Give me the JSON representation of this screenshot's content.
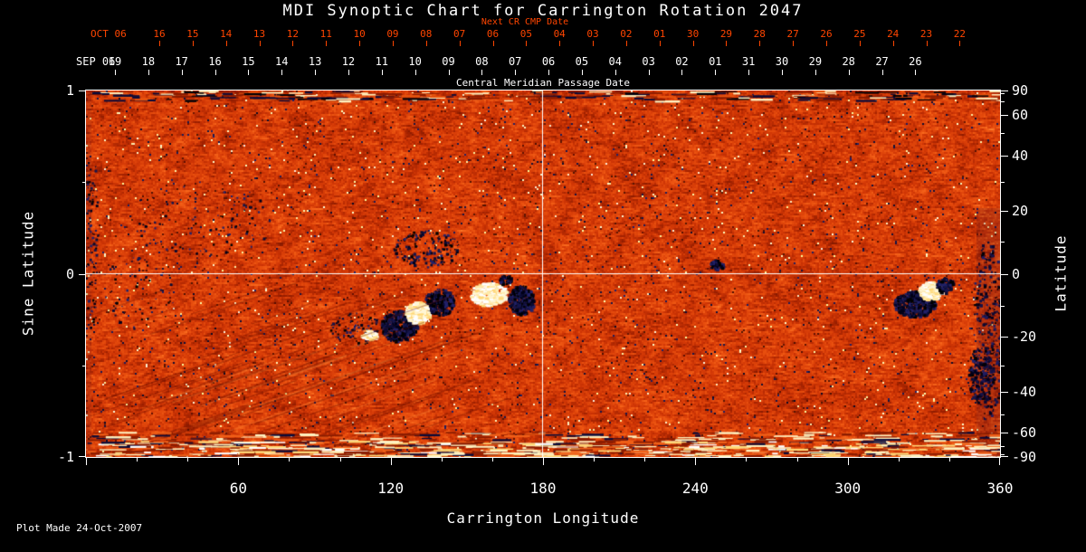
{
  "title": "MDI Synoptic Chart for Carrington Rotation 2047",
  "credit": "Plot Made 24-Oct-2007",
  "colors": {
    "background": "#000000",
    "foreground": "#ffffff",
    "date_red": "#ff4500"
  },
  "top_axis": {
    "next_cr_label": "Next CR CMP Date",
    "next_cr_month": "OCT 06",
    "next_cr_days": [
      "16",
      "15",
      "14",
      "13",
      "12",
      "11",
      "10",
      "09",
      "08",
      "07",
      "06",
      "05",
      "04",
      "03",
      "02",
      "01",
      "30",
      "29",
      "28",
      "27",
      "26",
      "25",
      "24",
      "23",
      "22"
    ],
    "cmp_month": "SEP 06",
    "cmp_days": [
      "19",
      "18",
      "17",
      "16",
      "15",
      "14",
      "13",
      "12",
      "11",
      "10",
      "09",
      "08",
      "07",
      "06",
      "05",
      "04",
      "03",
      "02",
      "01",
      "31",
      "30",
      "29",
      "28",
      "27",
      "26"
    ],
    "cmp_label": "Central Meridian Passage Date"
  },
  "chart_data": {
    "type": "heatmap",
    "title": "MDI Synoptic Chart for Carrington Rotation 2047",
    "xlabel": "Carrington Longitude",
    "ylabel_left": "Sine Latitude",
    "ylabel_right": "Latitude",
    "xlim": [
      0,
      360
    ],
    "ylim_sine_latitude": [
      -1,
      1
    ],
    "x_ticks": [
      60,
      120,
      180,
      240,
      300,
      360
    ],
    "y_left_ticks": [
      1,
      0,
      -1
    ],
    "y_right_ticks": [
      90,
      60,
      40,
      20,
      0,
      -20,
      -40,
      -60,
      -90
    ],
    "grid_lines": {
      "horizontal_at_sine_latitude": 0,
      "vertical_at_longitude": 180
    },
    "colormap": {
      "base_stops": [
        [
          0.0,
          "#6e1400"
        ],
        [
          0.2,
          "#9e2000"
        ],
        [
          0.45,
          "#cf3505"
        ],
        [
          0.7,
          "#e84e0e"
        ],
        [
          0.88,
          "#f96a1e"
        ],
        [
          1.0,
          "#ffa448"
        ]
      ],
      "negative_polarity": [
        "#000018",
        "#0b0b32",
        "#16164c",
        "#000000",
        "#22226a"
      ],
      "positive_polarity": [
        "#ffffff",
        "#fff7d6",
        "#ffeaa8",
        "#ffd878"
      ],
      "grid_line": "#ffffff"
    },
    "features": [
      {
        "name": "ar-a-west-dark",
        "lon": 123,
        "sine_lat": -0.28,
        "rlon": 7,
        "rslat": 0.085,
        "kind": "dark",
        "density": 460
      },
      {
        "name": "ar-a-east-dark",
        "lon": 139,
        "sine_lat": -0.15,
        "rlon": 6,
        "rslat": 0.07,
        "kind": "dark",
        "density": 300
      },
      {
        "name": "ar-a-bright-core",
        "lon": 130,
        "sine_lat": -0.21,
        "rlon": 4.5,
        "rslat": 0.06,
        "kind": "bright",
        "density": 240,
        "solid": true
      },
      {
        "name": "ar-a-trailing-speckles",
        "lon": 106,
        "sine_lat": -0.3,
        "rlon": 10,
        "rslat": 0.09,
        "kind": "dark",
        "density": 90,
        "dot": 2
      },
      {
        "name": "ar-a-trailing-bright",
        "lon": 111,
        "sine_lat": -0.33,
        "rlon": 3,
        "rslat": 0.025,
        "kind": "bright",
        "density": 60
      },
      {
        "name": "north-speckle-field",
        "lon": 134,
        "sine_lat": 0.14,
        "rlon": 13,
        "rslat": 0.1,
        "kind": "dark",
        "density": 160,
        "dot": 2.5
      },
      {
        "name": "ar-b-bright-plage",
        "lon": 158,
        "sine_lat": -0.11,
        "rlon": 7,
        "rslat": 0.065,
        "kind": "bright",
        "density": 380
      },
      {
        "name": "ar-b-dark-spot",
        "lon": 171,
        "sine_lat": -0.14,
        "rlon": 5,
        "rslat": 0.08,
        "kind": "dark",
        "density": 380
      },
      {
        "name": "ar-b-small-dark",
        "lon": 165,
        "sine_lat": -0.03,
        "rlon": 2.5,
        "rslat": 0.025,
        "kind": "dark",
        "density": 55
      },
      {
        "name": "center-small-dark",
        "lon": 248,
        "sine_lat": 0.05,
        "rlon": 2.5,
        "rslat": 0.03,
        "kind": "dark",
        "density": 70
      },
      {
        "name": "ar-c-dark",
        "lon": 326,
        "sine_lat": -0.16,
        "rlon": 8,
        "rslat": 0.07,
        "kind": "dark",
        "density": 500
      },
      {
        "name": "ar-c-bright-core",
        "lon": 332,
        "sine_lat": -0.09,
        "rlon": 4.5,
        "rslat": 0.05,
        "kind": "bright",
        "density": 230,
        "solid": true
      },
      {
        "name": "ar-c-dark-east",
        "lon": 338,
        "sine_lat": -0.06,
        "rlon": 3.5,
        "rslat": 0.04,
        "kind": "dark",
        "density": 120
      },
      {
        "name": "east-limb-diffuse-dark",
        "lon": 355,
        "sine_lat": -0.3,
        "rlon": 6,
        "rslat": 0.5,
        "kind": "dark",
        "density": 300,
        "dot": 2.5
      },
      {
        "name": "east-limb-dark-clump",
        "lon": 352,
        "sine_lat": -0.55,
        "rlon": 5,
        "rslat": 0.15,
        "kind": "dark",
        "density": 150
      },
      {
        "name": "west-quadrant-speckles",
        "lon": 45,
        "sine_lat": 0.3,
        "rlon": 28,
        "rslat": 0.22,
        "kind": "dark",
        "density": 110,
        "dot": 2
      },
      {
        "name": "west-mid-speckles",
        "lon": 20,
        "sine_lat": -0.1,
        "rlon": 15,
        "rslat": 0.2,
        "kind": "dark",
        "density": 60,
        "dot": 2
      },
      {
        "name": "west-edge-speckles",
        "lon": 2,
        "sine_lat": 0.2,
        "rlon": 2.5,
        "rslat": 0.5,
        "kind": "dark",
        "density": 90,
        "dot": 2
      }
    ]
  }
}
